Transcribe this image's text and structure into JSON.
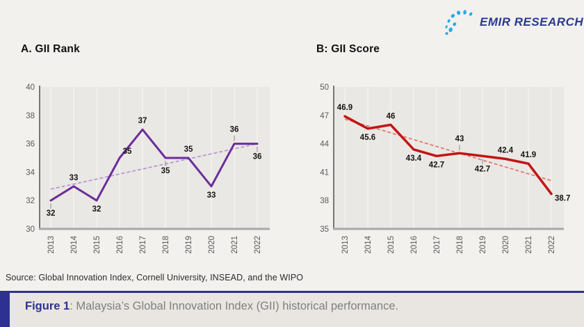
{
  "logo": {
    "brand": "EMIR RESEARCH",
    "tm": "™"
  },
  "source": "Source: Global Innovation Index, Cornell University, INSEAD, and the WIPO",
  "caption": {
    "label": "Figure 1",
    "text": ": Malaysia’s Global Innovation Index (GII) historical performance."
  },
  "chart_data": [
    {
      "type": "line",
      "title": "A. GII Rank",
      "categories": [
        "2013",
        "2014",
        "2015",
        "2016",
        "2017",
        "2018",
        "2019",
        "2020",
        "2021",
        "2022"
      ],
      "values": [
        32,
        33,
        32,
        35,
        37,
        35,
        35,
        33,
        36,
        36
      ],
      "labels": [
        "32",
        "33",
        "32",
        "35",
        "37",
        "35",
        "35",
        "33",
        "36",
        "36"
      ],
      "label_pos": [
        "below-leader",
        "above",
        "below",
        "above-right",
        "above",
        "below-leader",
        "above",
        "below",
        "above-leader",
        "below-leader"
      ],
      "trend": {
        "start": 32.8,
        "end": 36.0
      },
      "ylim": [
        30,
        40
      ],
      "yticks": [
        30,
        32,
        34,
        36,
        38,
        40
      ],
      "xlabel": "",
      "ylabel": "",
      "grid": "vertical-only",
      "legend": "none",
      "line_color": "#6b2d9b",
      "trend_color": "#b795d8",
      "line_width": 3
    },
    {
      "type": "line",
      "title": "B: GII Score",
      "categories": [
        "2013",
        "2014",
        "2015",
        "2016",
        "2017",
        "2018",
        "2019",
        "2020",
        "2021",
        "2022"
      ],
      "values": [
        46.9,
        45.6,
        46,
        43.4,
        42.7,
        43,
        42.7,
        42.4,
        41.9,
        38.7
      ],
      "labels": [
        "46.9",
        "45.6",
        "46",
        "43.4",
        "42.7",
        "43",
        "42.7",
        "42.4",
        "41.9",
        "38.7"
      ],
      "label_pos": [
        "above",
        "below",
        "above",
        "below",
        "below",
        "above-leader",
        "below-leader",
        "above",
        "above",
        "right-below"
      ],
      "trend": {
        "start": 46.6,
        "end": 40.1
      },
      "ylim": [
        35,
        50
      ],
      "yticks": [
        35,
        38,
        41,
        44,
        47,
        50
      ],
      "xlabel": "",
      "ylabel": "",
      "grid": "vertical-only",
      "legend": "none",
      "line_color": "#c31414",
      "trend_color": "#e4786d",
      "line_width": 3.5
    }
  ],
  "style": {
    "page_bg": "#f2f1ee",
    "plot_bg": "#e9e8e4",
    "grid_color": "#f7f6f3",
    "axis_spine": "#595959",
    "bottom_spine": "#a8a8a8",
    "tick_text": "#595959",
    "data_label": "#151515",
    "navy": "#2e3192",
    "logo_blue": "#2aa9e0"
  }
}
